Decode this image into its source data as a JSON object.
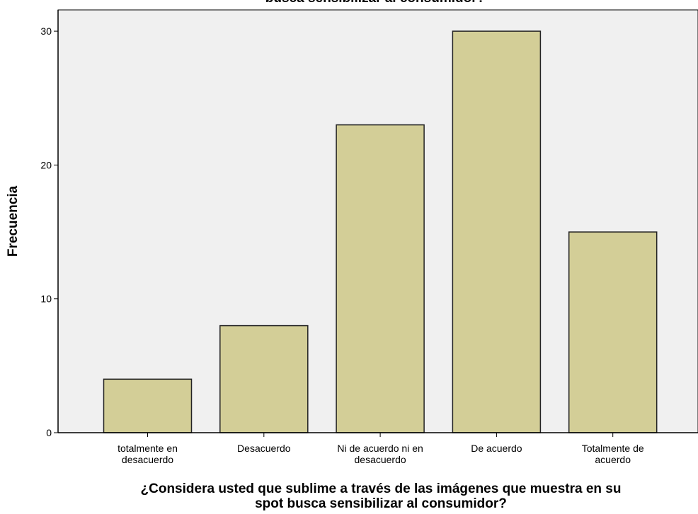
{
  "chart_data": {
    "type": "bar",
    "title": "busca sensibilizar al consumidor?",
    "categories": [
      [
        "totalmente en",
        "desacuerdo"
      ],
      [
        "Desacuerdo"
      ],
      [
        "Ni de acuerdo ni en",
        "desacuerdo"
      ],
      [
        "De acuerdo"
      ],
      [
        "Totalmente de",
        "acuerdo"
      ]
    ],
    "values": [
      4,
      8,
      23,
      30,
      15
    ],
    "ylabel": "Frecuencia",
    "xlabel": [
      "¿Considera usted que sublime a través de las imágenes que muestra en su",
      "spot busca sensibilizar al consumidor?"
    ],
    "ylim": [
      0,
      32
    ],
    "yticks": [
      0,
      10,
      20,
      30
    ],
    "grid": false,
    "colors": {
      "bar": "#d3ce97",
      "bar_stroke": "#222222",
      "plot_bg": "#f0f0f0"
    }
  }
}
